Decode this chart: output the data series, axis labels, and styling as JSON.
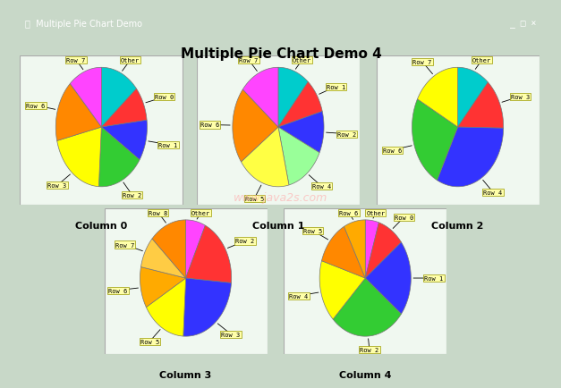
{
  "title": "Multiple Pie Chart Demo 4",
  "bg_color": "#c8d8c8",
  "panel_bg": "#e8f0e8",
  "chart_bg": "#f0f0f0",
  "watermark": "www.java2s.com",
  "charts": [
    {
      "title": "Column 0",
      "slices": [
        {
          "label": "Other",
          "value": 1.5,
          "color": "#00cccc"
        },
        {
          "label": "Row 0",
          "value": 1.0,
          "color": "#ff3333"
        },
        {
          "label": "Row 1",
          "value": 1.2,
          "color": "#3333ff"
        },
        {
          "label": "Row 2",
          "value": 1.8,
          "color": "#33cc33"
        },
        {
          "label": "Row 3",
          "value": 2.2,
          "color": "#ffff00"
        },
        {
          "label": "Row 6",
          "value": 1.8,
          "color": "#ff8800"
        },
        {
          "label": "Row 7",
          "value": 1.3,
          "color": "#ff44ff"
        }
      ]
    },
    {
      "title": "Column 1",
      "slices": [
        {
          "label": "Other",
          "value": 1.2,
          "color": "#00cccc"
        },
        {
          "label": "Row 1",
          "value": 1.0,
          "color": "#ff3333"
        },
        {
          "label": "Row 2",
          "value": 1.2,
          "color": "#3333ff"
        },
        {
          "label": "Row 4",
          "value": 1.5,
          "color": "#99ff99"
        },
        {
          "label": "Row 5",
          "value": 2.0,
          "color": "#ffff44"
        },
        {
          "label": "Row 6",
          "value": 2.2,
          "color": "#ff8800"
        },
        {
          "label": "Row 7",
          "value": 1.5,
          "color": "#ff44ff"
        }
      ]
    },
    {
      "title": "Column 2",
      "slices": [
        {
          "label": "Other",
          "value": 1.0,
          "color": "#00cccc"
        },
        {
          "label": "Row 3",
          "value": 1.2,
          "color": "#ff3333"
        },
        {
          "label": "Row 4",
          "value": 2.8,
          "color": "#3333ff"
        },
        {
          "label": "Row 6",
          "value": 2.2,
          "color": "#33cc33"
        },
        {
          "label": "Row 7",
          "value": 1.5,
          "color": "#ffff00"
        }
      ]
    },
    {
      "title": "Column 3",
      "slices": [
        {
          "label": "Other",
          "value": 0.8,
          "color": "#ff44ff"
        },
        {
          "label": "Row 2",
          "value": 2.2,
          "color": "#ff3333"
        },
        {
          "label": "Row 3",
          "value": 2.8,
          "color": "#3333ff"
        },
        {
          "label": "Row 5",
          "value": 1.8,
          "color": "#ffff00"
        },
        {
          "label": "Row 6",
          "value": 1.3,
          "color": "#ffaa00"
        },
        {
          "label": "Row 7",
          "value": 1.0,
          "color": "#ffcc44"
        },
        {
          "label": "Row 8",
          "value": 1.5,
          "color": "#ff8800"
        }
      ]
    },
    {
      "title": "Column 4",
      "slices": [
        {
          "label": "Other",
          "value": 0.5,
          "color": "#ff44ff"
        },
        {
          "label": "Row 0",
          "value": 1.0,
          "color": "#ff3333"
        },
        {
          "label": "Row 1",
          "value": 2.2,
          "color": "#3333ff"
        },
        {
          "label": "Row 2",
          "value": 2.8,
          "color": "#33cc33"
        },
        {
          "label": "Row 4",
          "value": 1.8,
          "color": "#ffff00"
        },
        {
          "label": "Row 5",
          "value": 1.3,
          "color": "#ff8800"
        },
        {
          "label": "Row 6",
          "value": 0.8,
          "color": "#ffaa00"
        }
      ]
    }
  ]
}
